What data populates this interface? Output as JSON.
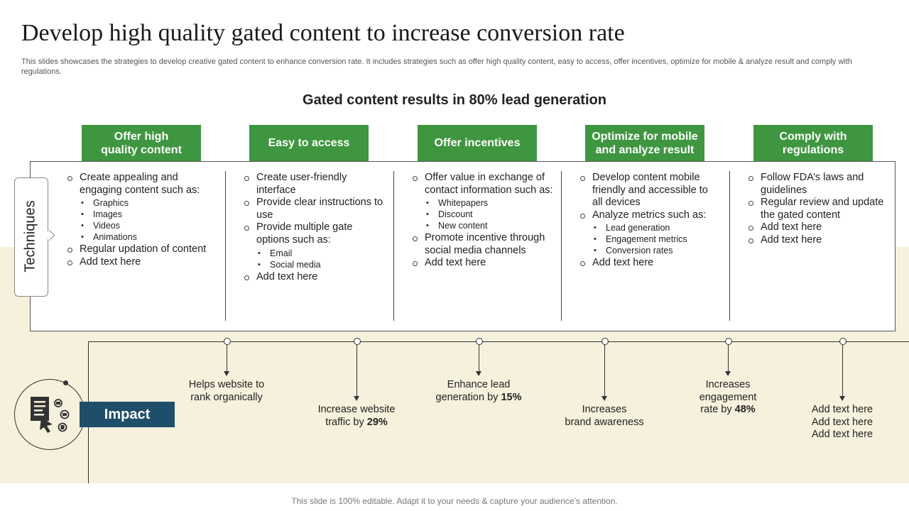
{
  "title": "Develop high quality gated content to increase conversion rate",
  "description": "This slides showcases the strategies to develop creative gated content to enhance conversion rate. It includes strategies such as offer high quality content, easy to access, offer incentives, optimize for mobile & analyze result and comply with regulations.",
  "subtitle": "Gated content results in 80% lead generation",
  "techniques_label": "Techniques",
  "impact_label": "Impact",
  "footer": "This slide is 100% editable. Adapt it to your needs & capture your audience’s attention.",
  "colors": {
    "header_green": "#3f9640",
    "impact_blue": "#1f4e6b",
    "cream": "#f5f1dc"
  },
  "icons": {
    "impact_icon": "presentation-document-icon"
  },
  "columns": [
    {
      "heading_line1": "Offer high",
      "heading_line2": "quality content",
      "items": [
        {
          "text": "Create appealing and engaging content such as:",
          "sub": [
            "Graphics",
            "Images",
            "Videos",
            "Animations"
          ]
        },
        {
          "text": "Regular updation of content"
        },
        {
          "text": "Add text here"
        }
      ]
    },
    {
      "heading_line1": "Easy to access",
      "heading_line2": "",
      "items": [
        {
          "text": "Create user-friendly interface"
        },
        {
          "text": "Provide clear instructions to use"
        },
        {
          "text": "Provide multiple gate options such as:",
          "sub": [
            "Email",
            "Social media"
          ]
        },
        {
          "text": "Add text here"
        }
      ]
    },
    {
      "heading_line1": "Offer incentives",
      "heading_line2": "",
      "items": [
        {
          "text": "Offer value in exchange of contact information such as:",
          "sub": [
            "Whitepapers",
            "Discount",
            "New content"
          ]
        },
        {
          "text": "Promote incentive through social media channels"
        },
        {
          "text": "Add text here"
        }
      ]
    },
    {
      "heading_line1": "Optimize for mobile",
      "heading_line2": "and analyze result",
      "items": [
        {
          "text": "Develop content mobile friendly and accessible to all devices"
        },
        {
          "text": "Analyze metrics such as:",
          "sub": [
            "Lead generation",
            "Engagement metrics",
            "Conversion rates"
          ]
        },
        {
          "text": "Add text here"
        }
      ]
    },
    {
      "heading_line1": "Comply with",
      "heading_line2": "regulations",
      "items": [
        {
          "text": "Follow FDA’s laws and guidelines"
        },
        {
          "text": "Regular review and update the gated content"
        },
        {
          "text": "Add text here"
        },
        {
          "text": "Add text here"
        }
      ]
    }
  ],
  "impacts": [
    {
      "line1": "Helps website to",
      "line2": "rank organically",
      "line3": "",
      "bold": ""
    },
    {
      "line1": "Increase website",
      "line2": "traffic by ",
      "line3": "",
      "bold": "29%"
    },
    {
      "line1": "Enhance lead",
      "line2": "generation by ",
      "line3": "",
      "bold": "15%"
    },
    {
      "line1": "Increases",
      "line2": "brand awareness",
      "line3": "",
      "bold": ""
    },
    {
      "line1": "Increases",
      "line2": "engagement",
      "line3": "rate by ",
      "bold": "48%"
    },
    {
      "line1": "Add text here",
      "line2": "Add text here",
      "line3": "Add text here",
      "bold": ""
    }
  ]
}
